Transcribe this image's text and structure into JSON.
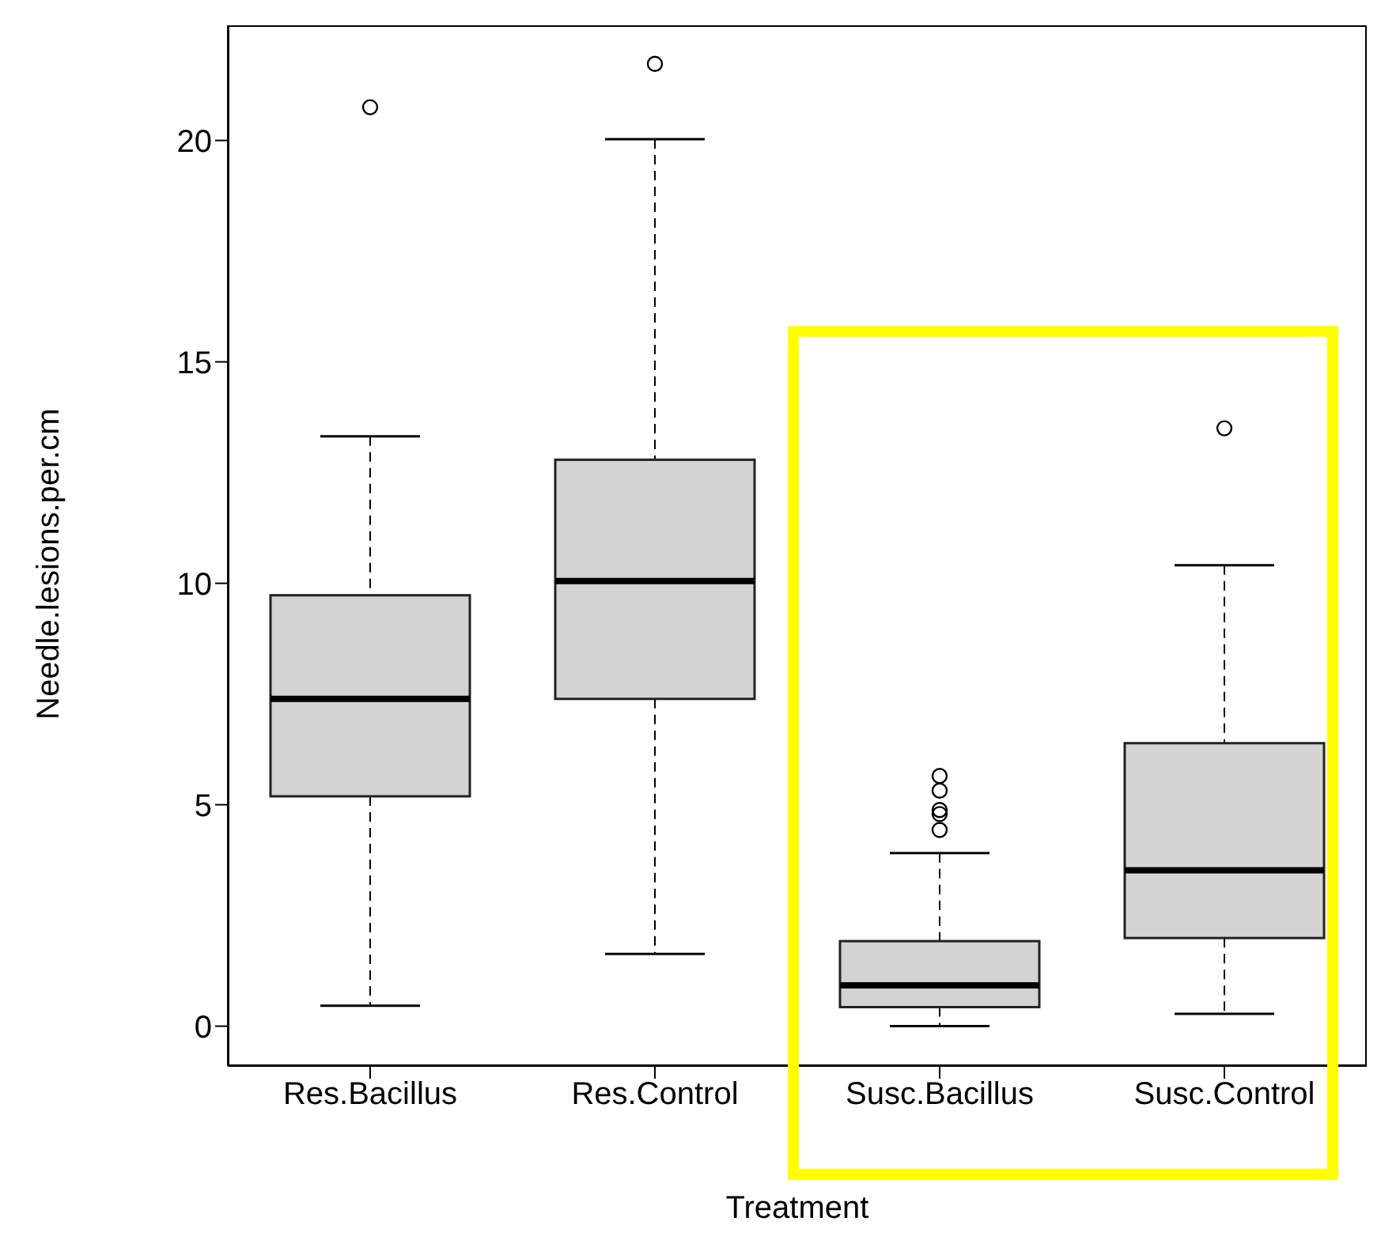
{
  "chart_data": {
    "type": "box",
    "xlabel": "Treatment",
    "ylabel": "Needle.lesions.per.cm",
    "categories": [
      "Res.Bacillus",
      "Res.Control",
      "Susc.Bacillus",
      "Susc.Control"
    ],
    "color": "#d3d3d3",
    "ylim": [
      -0.9,
      22.6
    ],
    "yticks": [
      0,
      5,
      10,
      15,
      20
    ],
    "grid": false,
    "legend": false,
    "boxes": [
      {
        "low": 0.46,
        "q1": 5.19,
        "median": 7.39,
        "q3": 9.73,
        "high": 13.32,
        "outliers": [
          20.75
        ]
      },
      {
        "low": 1.63,
        "q1": 7.39,
        "median": 10.05,
        "q3": 12.79,
        "high": 20.03,
        "outliers": [
          21.73
        ]
      },
      {
        "low": 0,
        "q1": 0.43,
        "median": 0.92,
        "q3": 1.92,
        "high": 3.91,
        "outliers": [
          5.65,
          5.32,
          4.88,
          4.79,
          4.43
        ]
      },
      {
        "low": 0.28,
        "q1": 1.99,
        "median": 3.52,
        "q3": 6.39,
        "high": 10.41,
        "outliers": [
          13.5
        ]
      }
    ]
  }
}
